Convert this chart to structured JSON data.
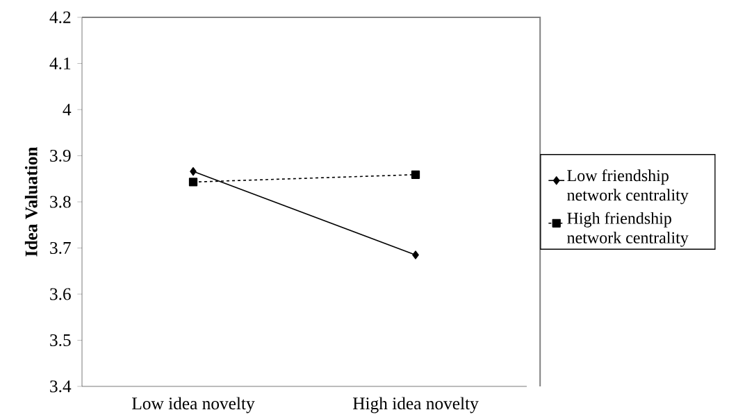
{
  "chart_data": {
    "type": "line",
    "ylabel": "Idea Valuation",
    "categories": [
      "Low idea novelty",
      "High idea novelty"
    ],
    "series": [
      {
        "name": "Low friendship network centrality",
        "color": "#000000",
        "marker": "diamond",
        "line_style": "solid",
        "values": [
          3.866,
          3.685
        ]
      },
      {
        "name": "High friendship network centrality",
        "color": "#000000",
        "marker": "square",
        "line_style": "dashed",
        "values": [
          3.843,
          3.859
        ]
      }
    ],
    "ylim": [
      3.4,
      4.2
    ],
    "yticks": [
      3.4,
      3.5,
      3.6,
      3.7,
      3.8,
      3.9,
      {
        "value": 4.0,
        "label": "4"
      },
      4.1,
      4.2
    ],
    "grid": false,
    "legend": "right"
  }
}
